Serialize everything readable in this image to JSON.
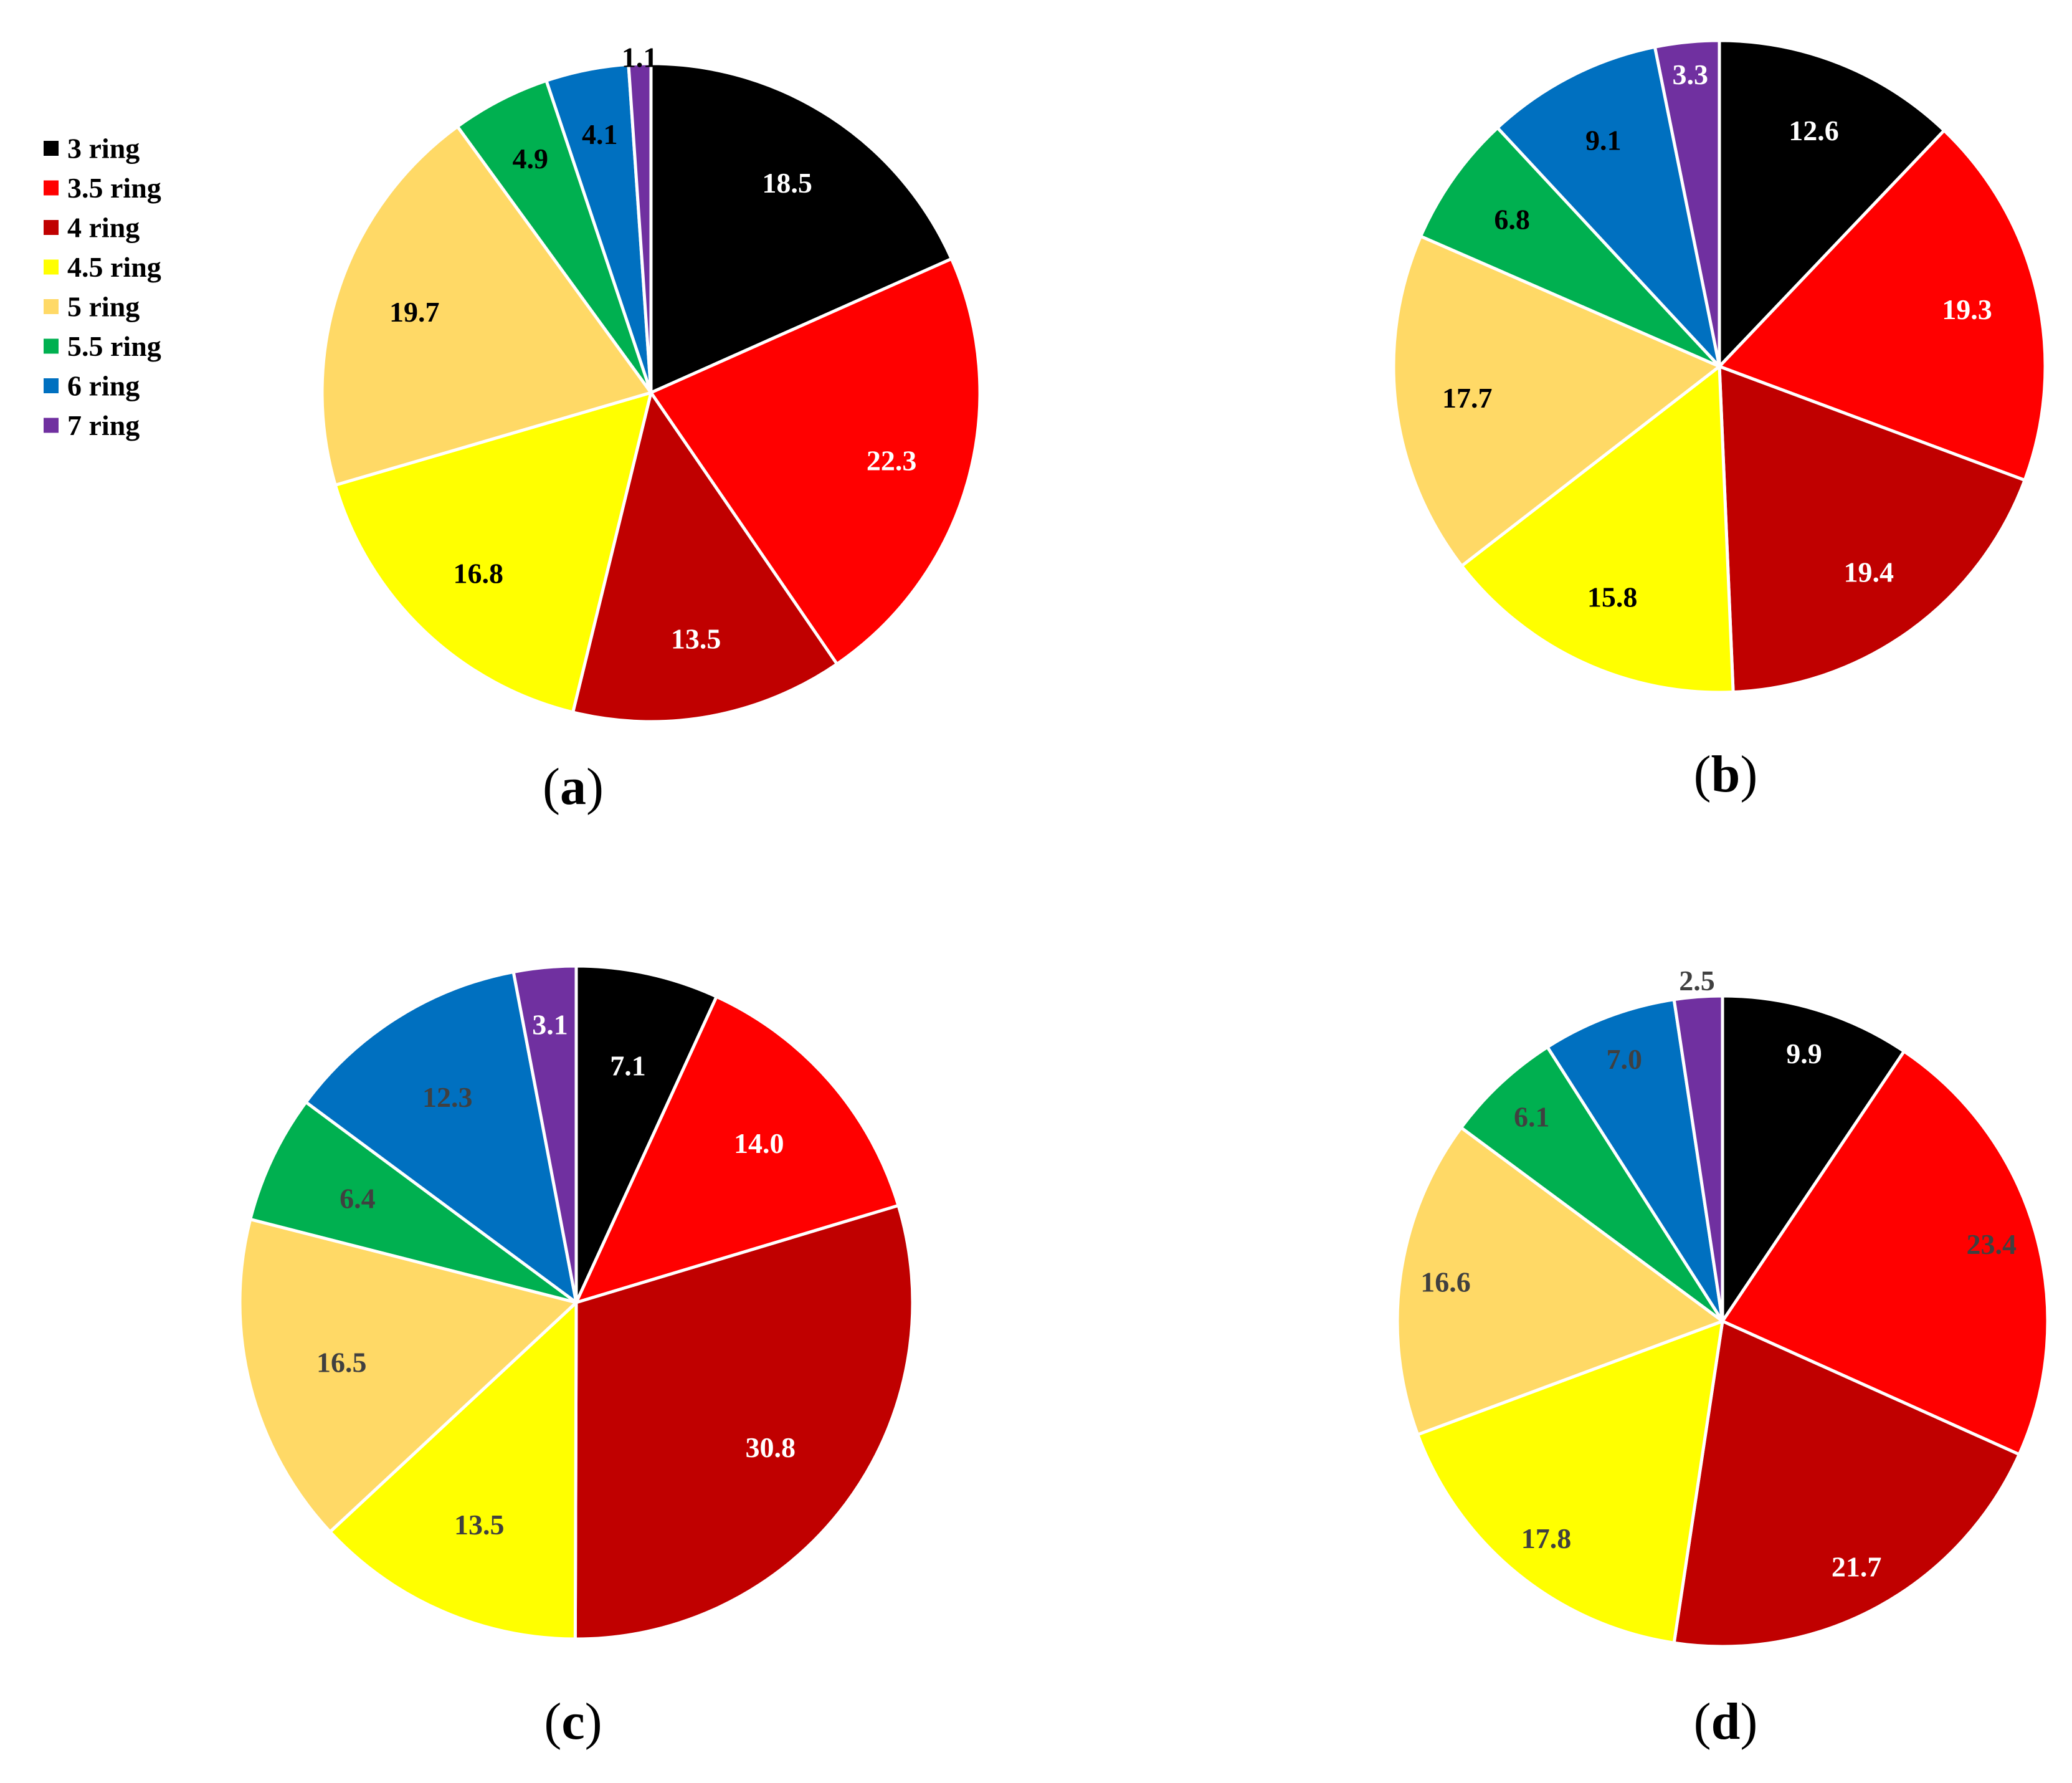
{
  "colors": {
    "background": "#ffffff",
    "slice_border": "#ffffff",
    "3 ring": "#000000",
    "3.5 ring": "#ff0000",
    "4 ring": "#c00000",
    "4.5 ring": "#ffff00",
    "5 ring": "#ffd966",
    "5.5 ring": "#00b050",
    "6 ring": "#0070c0",
    "7 ring": "#7030a0"
  },
  "legend": {
    "items": [
      {
        "label": "3 ring",
        "color": "#000000"
      },
      {
        "label": "3.5 ring",
        "color": "#ff0000"
      },
      {
        "label": "4 ring",
        "color": "#c00000"
      },
      {
        "label": "4.5 ring",
        "color": "#ffff00"
      },
      {
        "label": "5 ring",
        "color": "#ffd966"
      },
      {
        "label": "5.5 ring",
        "color": "#00b050"
      },
      {
        "label": "6 ring",
        "color": "#0070c0"
      },
      {
        "label": "7 ring",
        "color": "#7030a0"
      }
    ]
  },
  "chart_data": [
    {
      "type": "pie",
      "panel_label": "a",
      "categories": [
        "3 ring",
        "3.5 ring",
        "4 ring",
        "4.5 ring",
        "5 ring",
        "5.5 ring",
        "6 ring",
        "7 ring"
      ],
      "values": [
        18.5,
        22.3,
        13.5,
        16.8,
        19.7,
        4.9,
        4.1,
        1.1
      ],
      "data_labels": [
        "18.5",
        "22.3",
        "13.5",
        "16.8",
        "19.7",
        "4.9",
        "4.1",
        "1.1"
      ],
      "label_colors": [
        "#ffffff",
        "#ffffff",
        "#ffffff",
        "#000000",
        "#000000",
        "#000000",
        "#000000",
        "#000000"
      ],
      "legend": "left"
    },
    {
      "type": "pie",
      "panel_label": "b",
      "categories": [
        "3 ring",
        "3.5 ring",
        "4 ring",
        "4.5 ring",
        "5 ring",
        "5.5 ring",
        "6 ring",
        "7 ring"
      ],
      "values": [
        12.6,
        19.3,
        19.4,
        15.8,
        17.7,
        6.8,
        9.1,
        3.3
      ],
      "data_labels": [
        "12.6",
        "19.3",
        "19.4",
        "15.8",
        "17.7",
        "6.8",
        "9.1",
        "3.3"
      ],
      "label_colors": [
        "#ffffff",
        "#ffffff",
        "#ffffff",
        "#000000",
        "#000000",
        "#000000",
        "#000000",
        "#ffffff"
      ]
    },
    {
      "type": "pie",
      "panel_label": "c",
      "categories": [
        "3 ring",
        "3.5 ring",
        "4 ring",
        "4.5 ring",
        "5 ring",
        "5.5 ring",
        "6 ring",
        "7 ring"
      ],
      "values": [
        7.1,
        14.0,
        30.8,
        13.5,
        16.5,
        6.4,
        12.3,
        3.1
      ],
      "data_labels": [
        "7.1",
        "14.0",
        "30.8",
        "13.5",
        "16.5",
        "6.4",
        "12.3",
        "3.1"
      ],
      "label_colors": [
        "#ffffff",
        "#ffffff",
        "#ffffff",
        "#404040",
        "#404040",
        "#404040",
        "#404040",
        "#ffffff"
      ]
    },
    {
      "type": "pie",
      "panel_label": "d",
      "categories": [
        "3 ring",
        "3.5 ring",
        "4 ring",
        "4.5 ring",
        "5 ring",
        "5.5 ring",
        "6 ring",
        "7 ring"
      ],
      "values": [
        9.9,
        23.4,
        21.7,
        17.8,
        16.6,
        6.1,
        7.0,
        2.5
      ],
      "data_labels": [
        "9.9",
        "23.4",
        "21.7",
        "17.8",
        "16.6",
        "6.1",
        "7.0",
        "2.5"
      ],
      "label_colors": [
        "#ffffff",
        "#404040",
        "#ffffff",
        "#404040",
        "#404040",
        "#404040",
        "#404040",
        "#404040"
      ]
    }
  ]
}
